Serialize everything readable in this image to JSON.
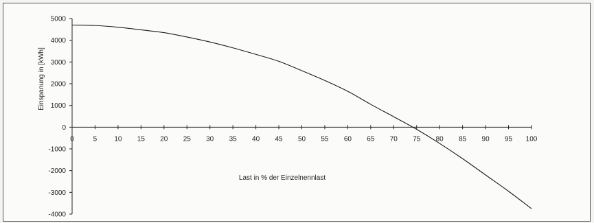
{
  "chart_data": {
    "type": "line",
    "title": "",
    "xlabel": "Last in % der Einzelnennlast",
    "ylabel": "Einspanung in [kWh]",
    "xlim": [
      0,
      100
    ],
    "ylim": [
      -4000,
      5000
    ],
    "x_ticks": [
      0,
      5,
      10,
      15,
      20,
      25,
      30,
      35,
      40,
      45,
      50,
      55,
      60,
      65,
      70,
      75,
      80,
      85,
      90,
      95,
      100
    ],
    "y_ticks": [
      5000,
      4000,
      3000,
      2000,
      1000,
      0,
      -1000,
      -2000,
      -3000,
      -4000
    ],
    "grid": false,
    "legend": "none",
    "line_color": "#1a1a1a",
    "series": [
      {
        "x": [
          0,
          5,
          10,
          15,
          20,
          25,
          30,
          35,
          40,
          45,
          50,
          55,
          60,
          65,
          70,
          75,
          80,
          85,
          90,
          95,
          100
        ],
        "values": [
          4700,
          4680,
          4600,
          4480,
          4350,
          4150,
          3920,
          3650,
          3350,
          3030,
          2600,
          2150,
          1650,
          1050,
          480,
          -100,
          -750,
          -1450,
          -2200,
          -2950,
          -3750
        ]
      }
    ]
  }
}
